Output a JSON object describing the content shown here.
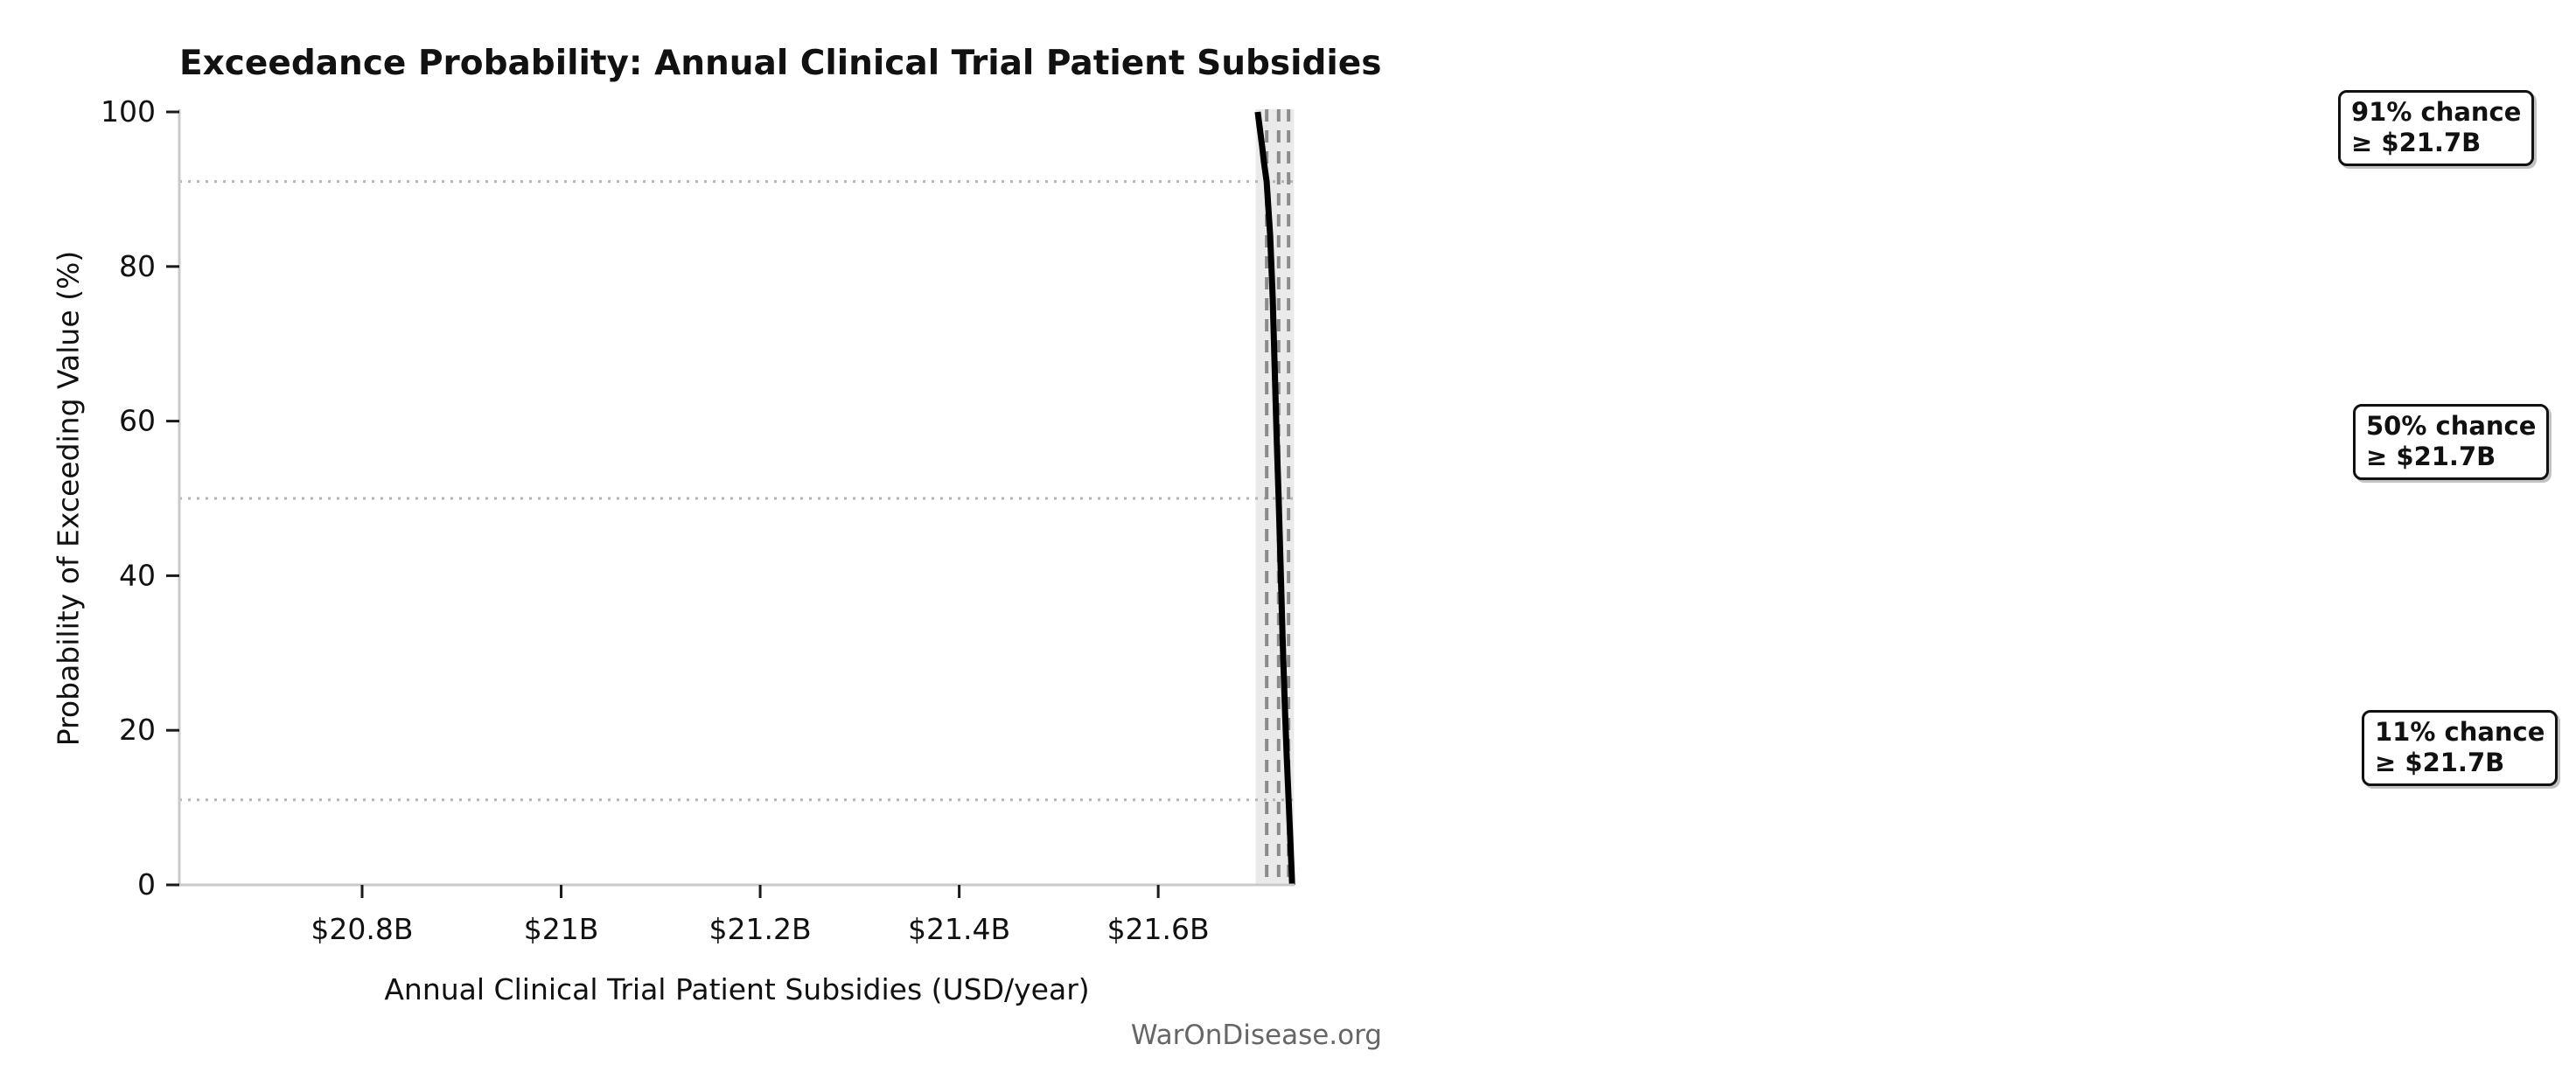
{
  "title": "Exceedance Probability: Annual Clinical Trial Patient Subsidies",
  "footer": "WarOnDisease.org",
  "annotations": [
    {
      "line1": "91% chance",
      "line2": "≥ $21.7B"
    },
    {
      "line1": "50% chance",
      "line2": "≥ $21.7B"
    },
    {
      "line1": "11% chance",
      "line2": "≥ $21.7B"
    }
  ],
  "colors": {
    "curve": "#000000",
    "quantile_dashed_line": "#8c8c8c",
    "probability_dotted_line": "#b5b5b5",
    "uncertainty_band": "#eaeaea",
    "axis_spine": "#c9c9c9",
    "tick_mark": "#1a1a1a",
    "tick_label": "#111111",
    "footer_text": "#666666",
    "annotation_border": "#111111",
    "background": "#ffffff"
  },
  "chart_data": {
    "type": "line",
    "title": "Exceedance Probability: Annual Clinical Trial Patient Subsidies",
    "xlabel": "Annual Clinical Trial Patient Subsidies (USD/year)",
    "ylabel": "Probability of Exceeding Value (%)",
    "x_unit": "billions of USD per year",
    "xlim": [
      20.6163,
      21.737
    ],
    "ylim": [
      0,
      100.34
    ],
    "grid": "off (reference lines only)",
    "legend": false,
    "x_ticks": [
      {
        "value": 20.8,
        "label": "$20.8B"
      },
      {
        "value": 21.0,
        "label": "$21B"
      },
      {
        "value": 21.2,
        "label": "$21.2B"
      },
      {
        "value": 21.4,
        "label": "$21.4B"
      },
      {
        "value": 21.6,
        "label": "$21.6B"
      }
    ],
    "y_ticks": [
      {
        "value": 0,
        "label": "0"
      },
      {
        "value": 20,
        "label": "20"
      },
      {
        "value": 40,
        "label": "40"
      },
      {
        "value": 60,
        "label": "60"
      },
      {
        "value": 80,
        "label": "80"
      },
      {
        "value": 100,
        "label": "100"
      }
    ],
    "band": {
      "x_range": [
        21.698,
        21.7365
      ],
      "note": "vertical shaded uncertainty band around curve"
    },
    "quantile_markers": [
      {
        "probability_pct": 91,
        "value": 21.709,
        "label": "$21.7B"
      },
      {
        "probability_pct": 50,
        "value": 21.721,
        "label": "$21.7B"
      },
      {
        "probability_pct": 11,
        "value": 21.731,
        "label": "$21.7B"
      }
    ],
    "series": [
      {
        "name": "exceedance-probability-curve",
        "points": [
          [
            21.7,
            100
          ],
          [
            21.701,
            99
          ],
          [
            21.7025,
            97.5
          ],
          [
            21.7045,
            95.5
          ],
          [
            21.7062,
            93.5
          ],
          [
            21.709,
            91
          ],
          [
            21.7125,
            84
          ],
          [
            21.715,
            76
          ],
          [
            21.7172,
            66
          ],
          [
            21.719,
            58
          ],
          [
            21.721,
            50
          ],
          [
            21.723,
            41
          ],
          [
            21.725,
            32
          ],
          [
            21.727,
            24
          ],
          [
            21.729,
            17
          ],
          [
            21.731,
            11
          ],
          [
            21.7325,
            6.5
          ],
          [
            21.7335,
            3.5
          ],
          [
            21.7343,
            1
          ],
          [
            21.7345,
            0
          ]
        ]
      }
    ]
  }
}
